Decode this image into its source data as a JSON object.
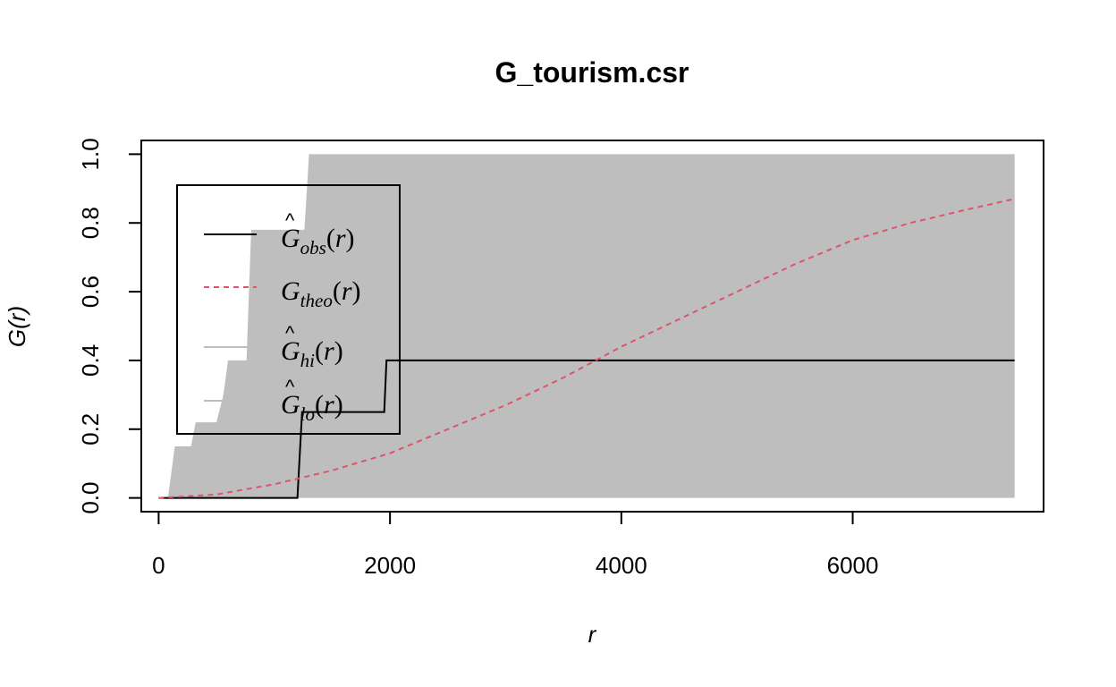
{
  "chart_data": {
    "type": "line",
    "title": "G_tourism.csr",
    "xlabel": "r",
    "ylabel": "G(r)",
    "xlim": [
      -150,
      7650
    ],
    "ylim": [
      -0.04,
      1.04
    ],
    "x_ticks": [
      0,
      2000,
      4000,
      6000
    ],
    "x_tick_labels": [
      "0",
      "2000",
      "4000",
      "6000"
    ],
    "y_ticks": [
      0.0,
      0.2,
      0.4,
      0.6,
      0.8,
      1.0
    ],
    "y_tick_labels": [
      "0.0",
      "0.2",
      "0.4",
      "0.6",
      "0.8",
      "1.0"
    ],
    "grid": false,
    "legend_position": "top-left",
    "series": [
      {
        "name": "obs",
        "style": "solid",
        "color": "#000000",
        "step": true,
        "x": [
          0,
          1200,
          1240,
          1950,
          1970,
          7400
        ],
        "y": [
          0,
          0,
          0.25,
          0.25,
          0.4,
          0.4
        ]
      },
      {
        "name": "theo",
        "style": "dashed",
        "color": "#DF536B",
        "x": [
          0,
          500,
          1000,
          1500,
          2000,
          2500,
          3000,
          3500,
          4000,
          4500,
          5000,
          5500,
          6000,
          6500,
          7000,
          7400
        ],
        "y": [
          0,
          0.01,
          0.04,
          0.08,
          0.13,
          0.2,
          0.27,
          0.35,
          0.44,
          0.52,
          0.6,
          0.68,
          0.75,
          0.8,
          0.84,
          0.87
        ]
      }
    ],
    "envelope": {
      "name_hi": "hi",
      "name_lo": "lo",
      "color": "#BEBEBE",
      "hi_x": [
        0,
        80,
        140,
        280,
        320,
        500,
        560,
        600,
        700,
        760,
        800,
        1000,
        1260,
        1300,
        7400
      ],
      "hi_y": [
        0,
        0,
        0.15,
        0.15,
        0.22,
        0.22,
        0.3,
        0.4,
        0.4,
        0.4,
        0.78,
        0.78,
        0.78,
        1.0,
        1.0
      ],
      "lo": 0
    },
    "legend": [
      {
        "base": "G",
        "hat": true,
        "sub": "obs",
        "arg": "(r)",
        "line_color": "#000000",
        "line_style": "solid"
      },
      {
        "base": "G",
        "hat": false,
        "sub": "theo",
        "arg": "(r)",
        "line_color": "#DF536B",
        "line_style": "dashed"
      },
      {
        "base": "G",
        "hat": true,
        "sub": "hi",
        "arg": "(r)",
        "line_color": "#BEBEBE",
        "line_style": "solid"
      },
      {
        "base": "G",
        "hat": true,
        "sub": "lo",
        "arg": "(r)",
        "line_color": "#BEBEBE",
        "line_style": "solid"
      }
    ]
  }
}
